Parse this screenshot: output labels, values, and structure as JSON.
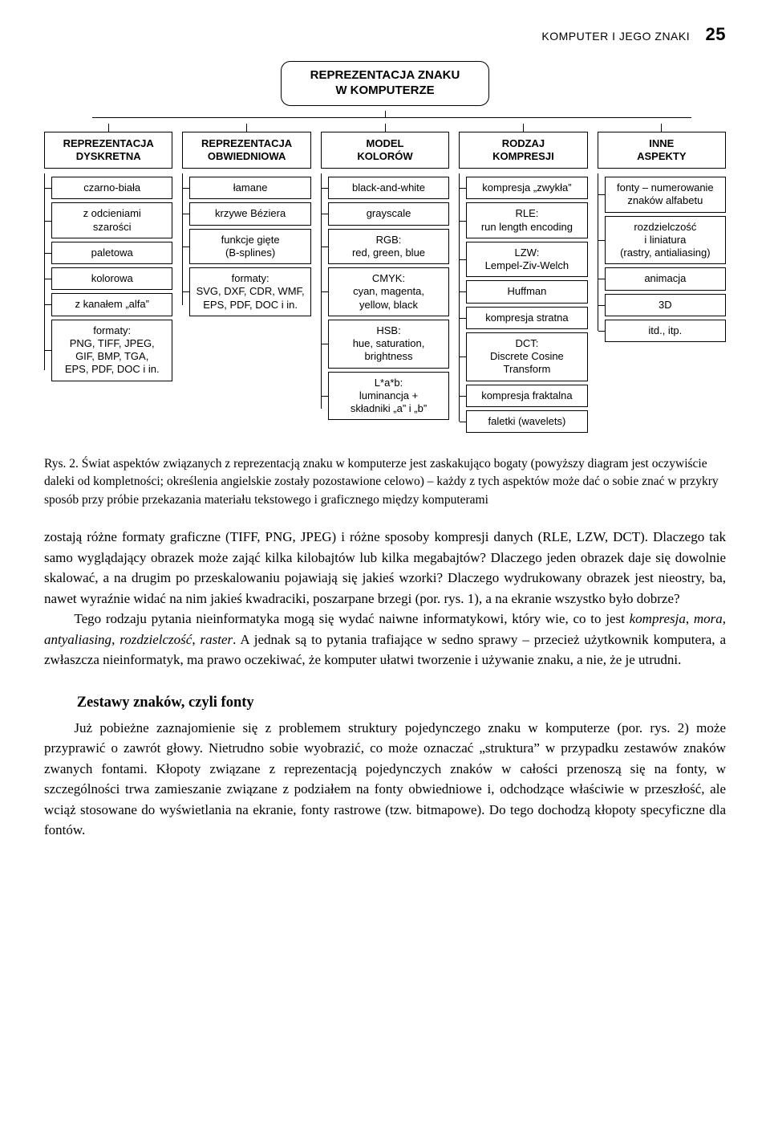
{
  "header": {
    "running": "KOMPUTER I JEGO ZNAKI",
    "page": "25"
  },
  "diagram": {
    "root": "REPREZENTACJA ZNAKU\nW KOMPUTERZE",
    "columns": [
      {
        "head": "REPREZENTACJA\nDYSKRETNA",
        "items": [
          "czarno-biała",
          "z odcieniami\nszarości",
          "paletowa",
          "kolorowa",
          "z kanałem „alfa”",
          "formaty:\nPNG, TIFF, JPEG,\nGIF, BMP, TGA,\nEPS, PDF, DOC i in."
        ]
      },
      {
        "head": "REPREZENTACJA\nOBWIEDNIOWA",
        "items": [
          "łamane",
          "krzywe Béziera",
          "funkcje gięte\n(B-splines)",
          "formaty:\nSVG, DXF, CDR, WMF,\nEPS, PDF, DOC i in."
        ]
      },
      {
        "head": "MODEL\nKOLORÓW",
        "items": [
          "black-and-white",
          "grayscale",
          "RGB:\nred, green, blue",
          "CMYK:\ncyan, magenta,\nyellow, black",
          "HSB:\nhue, saturation,\nbrightness",
          "L*a*b:\nluminancja +\nskładniki „a” i „b”"
        ]
      },
      {
        "head": "RODZAJ\nKOMPRESJI",
        "items": [
          "kompresja „zwykła”",
          "RLE:\nrun length encoding",
          "LZW:\nLempel-Ziv-Welch",
          "Huffman",
          "kompresja stratna",
          "DCT:\nDiscrete Cosine\nTransform",
          "kompresja fraktalna",
          "faletki (wavelets)"
        ]
      },
      {
        "head": "INNE\nASPEKTY",
        "items": [
          "fonty – numerowanie\nznaków alfabetu",
          "rozdzielczość\ni liniatura\n(rastry, antialiasing)",
          "animacja",
          "3D",
          "itd., itp."
        ]
      }
    ]
  },
  "caption": "Rys. 2. Świat aspektów związanych z reprezentacją znaku w komputerze jest zaskakująco bogaty (powyższy diagram jest oczywiście daleki od kompletności; określenia angielskie zostały pozostawione celowo) – każdy z tych aspektów może dać o sobie znać w przykry sposób przy próbie przekazania materiału tekstowego i graficznego między komputerami",
  "para1": "zostają różne formaty graficzne (TIFF, PNG, JPEG) i różne sposoby kompresji danych (RLE, LZW, DCT). Dlaczego tak samo wyglądający obrazek może zająć kilka kilobajtów lub kilka megabajtów? Dlaczego jeden obrazek daje się dowolnie skalować, a na drugim po przeskalowaniu pojawiają się jakieś wzorki? Dlaczego wydrukowany obrazek jest nieostry, ba, nawet wyraźnie widać na nim jakieś kwadraciki, poszarpane brzegi (por. rys. 1), a na ekranie wszystko było dobrze?",
  "para2_a": "Tego rodzaju pytania nieinformatyka mogą się wydać naiwne informatykowi, który wie, co to jest ",
  "para2_i1": "kompresja",
  "para2_s1": ", ",
  "para2_i2": "mora",
  "para2_s2": ", ",
  "para2_i3": "antyaliasing",
  "para2_s3": ", ",
  "para2_i4": "rozdzielczość",
  "para2_s4": ", ",
  "para2_i5": "raster",
  "para2_b": ". A jednak są to pytania trafiające w sedno sprawy – przecież użytkownik komputera, a zwłaszcza nieinformatyk, ma prawo oczekiwać, że komputer ułatwi tworzenie i używanie znaku, a nie, że je utrudni.",
  "subhead": "Zestawy znaków, czyli fonty",
  "para3": "Już pobieżne zaznajomienie się z problemem struktury pojedynczego znaku w komputerze (por. rys. 2) może przyprawić o zawrót głowy. Nietrudno sobie wyobrazić, co może oznaczać „struktura” w przypadku zestawów znaków zwanych fontami. Kłopoty związane z reprezentacją pojedynczych znaków w całości przenoszą się na fonty, w szczególności trwa zamieszanie związane z podziałem na fonty obwiedniowe i, odchodzące właściwie w przeszłość, ale wciąż stosowane do wyświetlania na ekranie, fonty rastrowe (tzw. bitmapowe). Do tego dochodzą kłopoty specyficzne dla fontów."
}
